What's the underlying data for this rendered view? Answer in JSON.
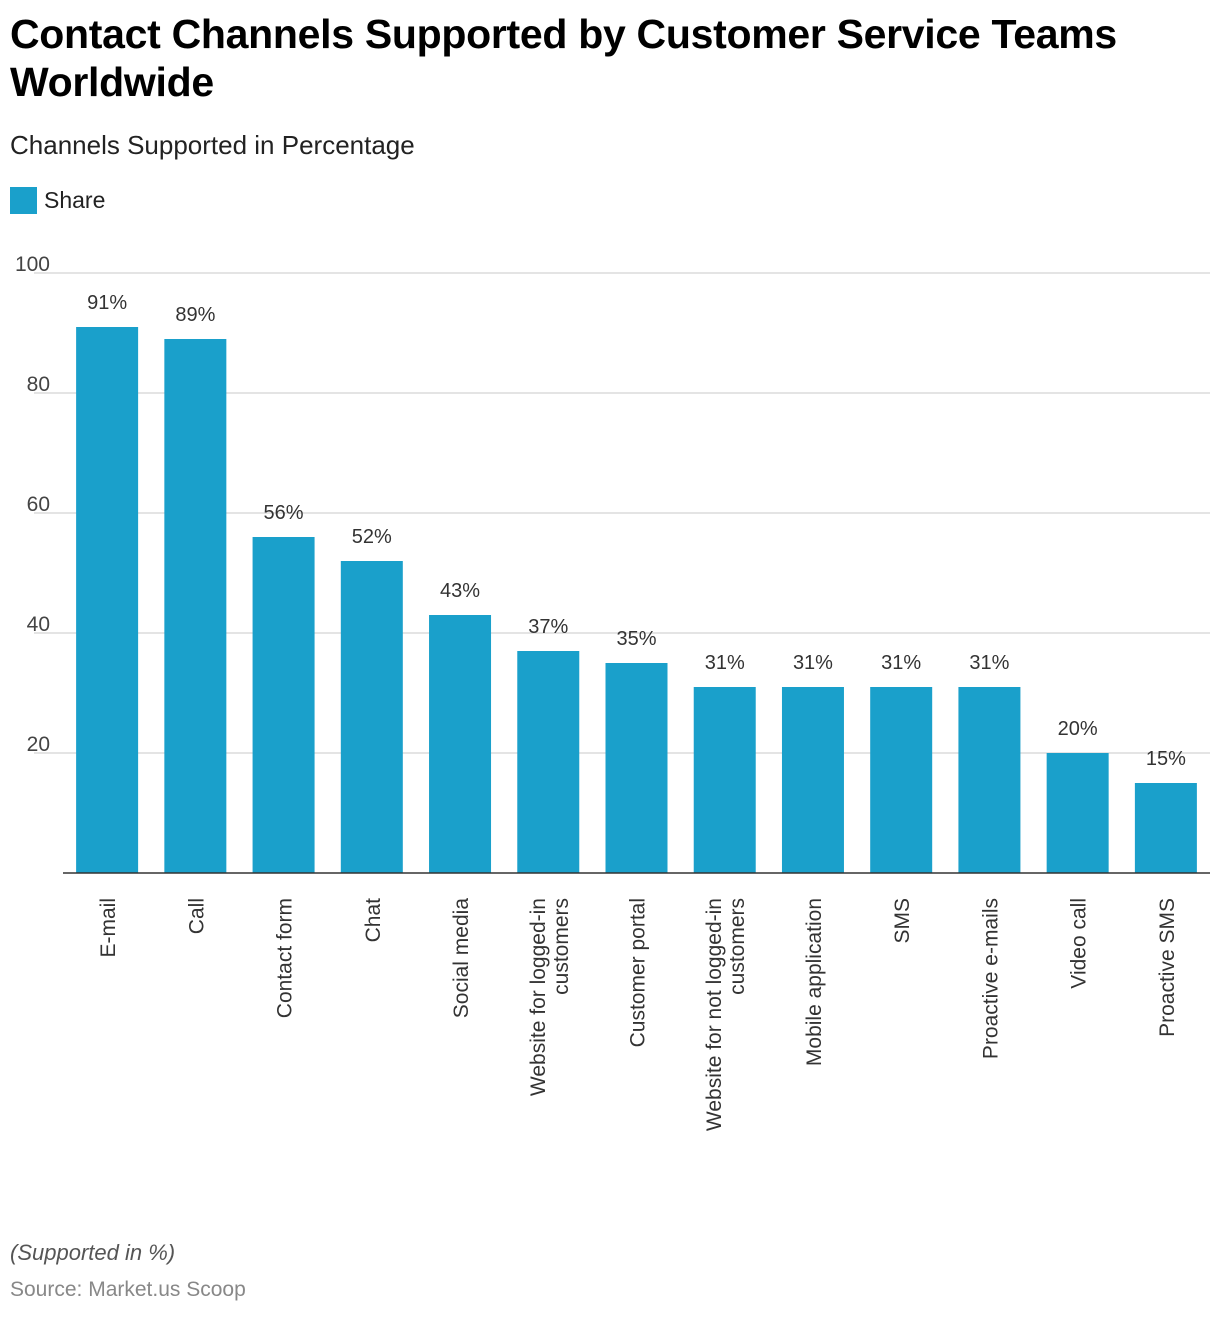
{
  "header": {
    "title": "Contact Channels Supported by Customer Service Teams Worldwide",
    "subtitle": "Channels Supported in Percentage"
  },
  "legend": {
    "label": "Share",
    "color": "#1aa0cb"
  },
  "chart_data": {
    "type": "bar",
    "title": "Contact Channels Supported by Customer Service Teams Worldwide",
    "subtitle": "Channels Supported in Percentage",
    "xlabel": "",
    "ylabel": "",
    "ylim": [
      0,
      100
    ],
    "yticks": [
      20,
      40,
      60,
      80,
      100
    ],
    "grid": true,
    "legend_position": "top-left",
    "categories": [
      "E-mail",
      "Call",
      "Contact form",
      "Chat",
      "Social media",
      "Website for logged-in customers",
      "Customer portal",
      "Website for not logged-in customers",
      "Mobile application",
      "SMS",
      "Proactive e-mails",
      "Video call",
      "Proactive SMS"
    ],
    "series": [
      {
        "name": "Share",
        "color": "#1aa0cb",
        "values": [
          91,
          89,
          56,
          52,
          43,
          37,
          35,
          31,
          31,
          31,
          31,
          20,
          15
        ],
        "labels": [
          "91%",
          "89%",
          "56%",
          "52%",
          "43%",
          "37%",
          "35%",
          "31%",
          "31%",
          "31%",
          "31%",
          "20%",
          "15%"
        ]
      }
    ]
  },
  "footer": {
    "note": "(Supported in %)",
    "source": "Source: Market.us Scoop"
  }
}
